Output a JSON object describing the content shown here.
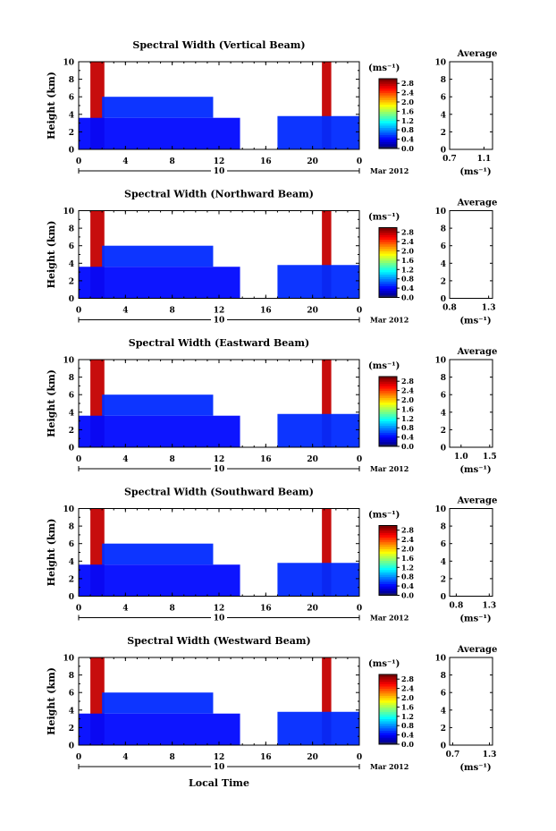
{
  "page": {
    "date_label": "Mar 2012",
    "xlabel_bottom": "Local Time",
    "day_label": "10"
  },
  "chart_data": [
    {
      "type": "heatmap",
      "title": "Spectral Width (Vertical Beam)",
      "ylabel": "Height (km)",
      "xlim": [
        0,
        24
      ],
      "ylim": [
        0,
        10
      ],
      "xticks": [
        "0",
        "4",
        "8",
        "12",
        "16",
        "20",
        "0"
      ],
      "yticks": [
        "0",
        "2",
        "4",
        "6",
        "8",
        "10"
      ],
      "colorbar": {
        "label": "(ms⁻¹)",
        "ticks": [
          "0.0",
          "0.4",
          "0.8",
          "1.2",
          "1.6",
          "2.0",
          "2.4",
          "2.8"
        ],
        "range": [
          0,
          3.0
        ]
      },
      "average": {
        "title": "Average",
        "xlabel": "(ms⁻¹)",
        "xticks": [
          "0.7",
          "1.1"
        ],
        "xlim": [
          0.7,
          1.2
        ],
        "ylim": [
          0,
          10
        ]
      },
      "bands": [
        {
          "name": "convective column 1",
          "x": [
            1.0,
            2.2
          ],
          "y": [
            0,
            10
          ],
          "value": 2.8
        },
        {
          "name": "convective column 2",
          "x": [
            20.8,
            21.6
          ],
          "y": [
            0,
            10
          ],
          "value": 2.8
        },
        {
          "name": "low layer",
          "x": [
            0,
            13.8
          ],
          "y": [
            0,
            3.6
          ],
          "value": 0.4
        },
        {
          "name": "mid layer",
          "x": [
            2.0,
            11.5
          ],
          "y": [
            3.6,
            6.0
          ],
          "value": 0.5
        },
        {
          "name": "evening layer",
          "x": [
            17.0,
            24.0
          ],
          "y": [
            0,
            3.8
          ],
          "value": 0.5
        }
      ]
    },
    {
      "type": "heatmap",
      "title": "Spectral Width (Northward Beam)",
      "ylabel": "Height (km)",
      "xlim": [
        0,
        24
      ],
      "ylim": [
        0,
        10
      ],
      "xticks": [
        "0",
        "4",
        "8",
        "12",
        "16",
        "20",
        "0"
      ],
      "yticks": [
        "0",
        "2",
        "4",
        "6",
        "8",
        "10"
      ],
      "colorbar": {
        "label": "(ms⁻¹)",
        "ticks": [
          "0.0",
          "0.4",
          "0.8",
          "1.2",
          "1.6",
          "2.0",
          "2.4",
          "2.8"
        ],
        "range": [
          0,
          3.0
        ]
      },
      "average": {
        "title": "Average",
        "xlabel": "(ms⁻¹)",
        "xticks": [
          "0.8",
          "1.3"
        ],
        "xlim": [
          0.8,
          1.35
        ],
        "ylim": [
          0,
          10
        ]
      },
      "bands": [
        {
          "name": "convective column 1",
          "x": [
            1.0,
            2.2
          ],
          "y": [
            0,
            10
          ],
          "value": 2.8
        },
        {
          "name": "convective column 2",
          "x": [
            20.8,
            21.6
          ],
          "y": [
            0,
            10
          ],
          "value": 2.8
        },
        {
          "name": "low layer",
          "x": [
            0,
            13.8
          ],
          "y": [
            0,
            3.6
          ],
          "value": 0.4
        },
        {
          "name": "mid layer",
          "x": [
            2.0,
            11.5
          ],
          "y": [
            3.6,
            6.0
          ],
          "value": 0.5
        },
        {
          "name": "evening layer",
          "x": [
            17.0,
            24.0
          ],
          "y": [
            0,
            3.8
          ],
          "value": 0.5
        }
      ]
    },
    {
      "type": "heatmap",
      "title": "Spectral Width (Eastward Beam)",
      "ylabel": "Height (km)",
      "xlim": [
        0,
        24
      ],
      "ylim": [
        0,
        10
      ],
      "xticks": [
        "0",
        "4",
        "8",
        "12",
        "16",
        "20",
        "0"
      ],
      "yticks": [
        "0",
        "2",
        "4",
        "6",
        "8",
        "10"
      ],
      "colorbar": {
        "label": "(ms⁻¹)",
        "ticks": [
          "0.0",
          "0.4",
          "0.8",
          "1.2",
          "1.6",
          "2.0",
          "2.4",
          "2.8"
        ],
        "range": [
          0,
          3.0
        ]
      },
      "average": {
        "title": "Average",
        "xlabel": "(ms⁻¹)",
        "xticks": [
          "1.0",
          "1.5"
        ],
        "xlim": [
          0.8,
          1.55
        ],
        "ylim": [
          0,
          10
        ]
      },
      "bands": [
        {
          "name": "convective column 1",
          "x": [
            1.0,
            2.2
          ],
          "y": [
            0,
            10
          ],
          "value": 2.8
        },
        {
          "name": "convective column 2",
          "x": [
            20.8,
            21.6
          ],
          "y": [
            0,
            10
          ],
          "value": 2.8
        },
        {
          "name": "low layer",
          "x": [
            0,
            13.8
          ],
          "y": [
            0,
            3.6
          ],
          "value": 0.4
        },
        {
          "name": "mid layer",
          "x": [
            2.0,
            11.5
          ],
          "y": [
            3.6,
            6.0
          ],
          "value": 0.5
        },
        {
          "name": "evening layer",
          "x": [
            17.0,
            24.0
          ],
          "y": [
            0,
            3.8
          ],
          "value": 0.5
        }
      ]
    },
    {
      "type": "heatmap",
      "title": "Spectral Width (Southward Beam)",
      "ylabel": "Height (km)",
      "xlim": [
        0,
        24
      ],
      "ylim": [
        0,
        10
      ],
      "xticks": [
        "0",
        "4",
        "8",
        "12",
        "16",
        "20",
        "0"
      ],
      "yticks": [
        "0",
        "2",
        "4",
        "6",
        "8",
        "10"
      ],
      "colorbar": {
        "label": "(ms⁻¹)",
        "ticks": [
          "0.0",
          "0.4",
          "0.8",
          "1.2",
          "1.6",
          "2.0",
          "2.4",
          "2.8"
        ],
        "range": [
          0,
          3.0
        ]
      },
      "average": {
        "title": "Average",
        "xlabel": "(ms⁻¹)",
        "xticks": [
          "0.8",
          "1.3"
        ],
        "xlim": [
          0.7,
          1.35
        ],
        "ylim": [
          0,
          10
        ]
      },
      "bands": [
        {
          "name": "convective column 1",
          "x": [
            1.0,
            2.2
          ],
          "y": [
            0,
            10
          ],
          "value": 2.8
        },
        {
          "name": "convective column 2",
          "x": [
            20.8,
            21.6
          ],
          "y": [
            0,
            10
          ],
          "value": 2.8
        },
        {
          "name": "low layer",
          "x": [
            0,
            13.8
          ],
          "y": [
            0,
            3.6
          ],
          "value": 0.4
        },
        {
          "name": "mid layer",
          "x": [
            2.0,
            11.5
          ],
          "y": [
            3.6,
            6.0
          ],
          "value": 0.5
        },
        {
          "name": "evening layer",
          "x": [
            17.0,
            24.0
          ],
          "y": [
            0,
            3.8
          ],
          "value": 0.5
        }
      ]
    },
    {
      "type": "heatmap",
      "title": "Spectral Width (Westward Beam)",
      "ylabel": "Height (km)",
      "xlim": [
        0,
        24
      ],
      "ylim": [
        0,
        10
      ],
      "xticks": [
        "0",
        "4",
        "8",
        "12",
        "16",
        "20",
        "0"
      ],
      "yticks": [
        "0",
        "2",
        "4",
        "6",
        "8",
        "10"
      ],
      "colorbar": {
        "label": "(ms⁻¹)",
        "ticks": [
          "0.0",
          "0.4",
          "0.8",
          "1.2",
          "1.6",
          "2.0",
          "2.4",
          "2.8"
        ],
        "range": [
          0,
          3.0
        ]
      },
      "average": {
        "title": "Average",
        "xlabel": "(ms⁻¹)",
        "xticks": [
          "0.7",
          "1.3"
        ],
        "xlim": [
          0.65,
          1.35
        ],
        "ylim": [
          0,
          10
        ]
      },
      "bands": [
        {
          "name": "convective column 1",
          "x": [
            1.0,
            2.2
          ],
          "y": [
            0,
            10
          ],
          "value": 2.8
        },
        {
          "name": "convective column 2",
          "x": [
            20.8,
            21.6
          ],
          "y": [
            0,
            10
          ],
          "value": 2.8
        },
        {
          "name": "low layer",
          "x": [
            0,
            13.8
          ],
          "y": [
            0,
            3.6
          ],
          "value": 0.4
        },
        {
          "name": "mid layer",
          "x": [
            2.0,
            11.5
          ],
          "y": [
            3.6,
            6.0
          ],
          "value": 0.5
        },
        {
          "name": "evening layer",
          "x": [
            17.0,
            24.0
          ],
          "y": [
            0,
            3.8
          ],
          "value": 0.5
        }
      ]
    }
  ]
}
